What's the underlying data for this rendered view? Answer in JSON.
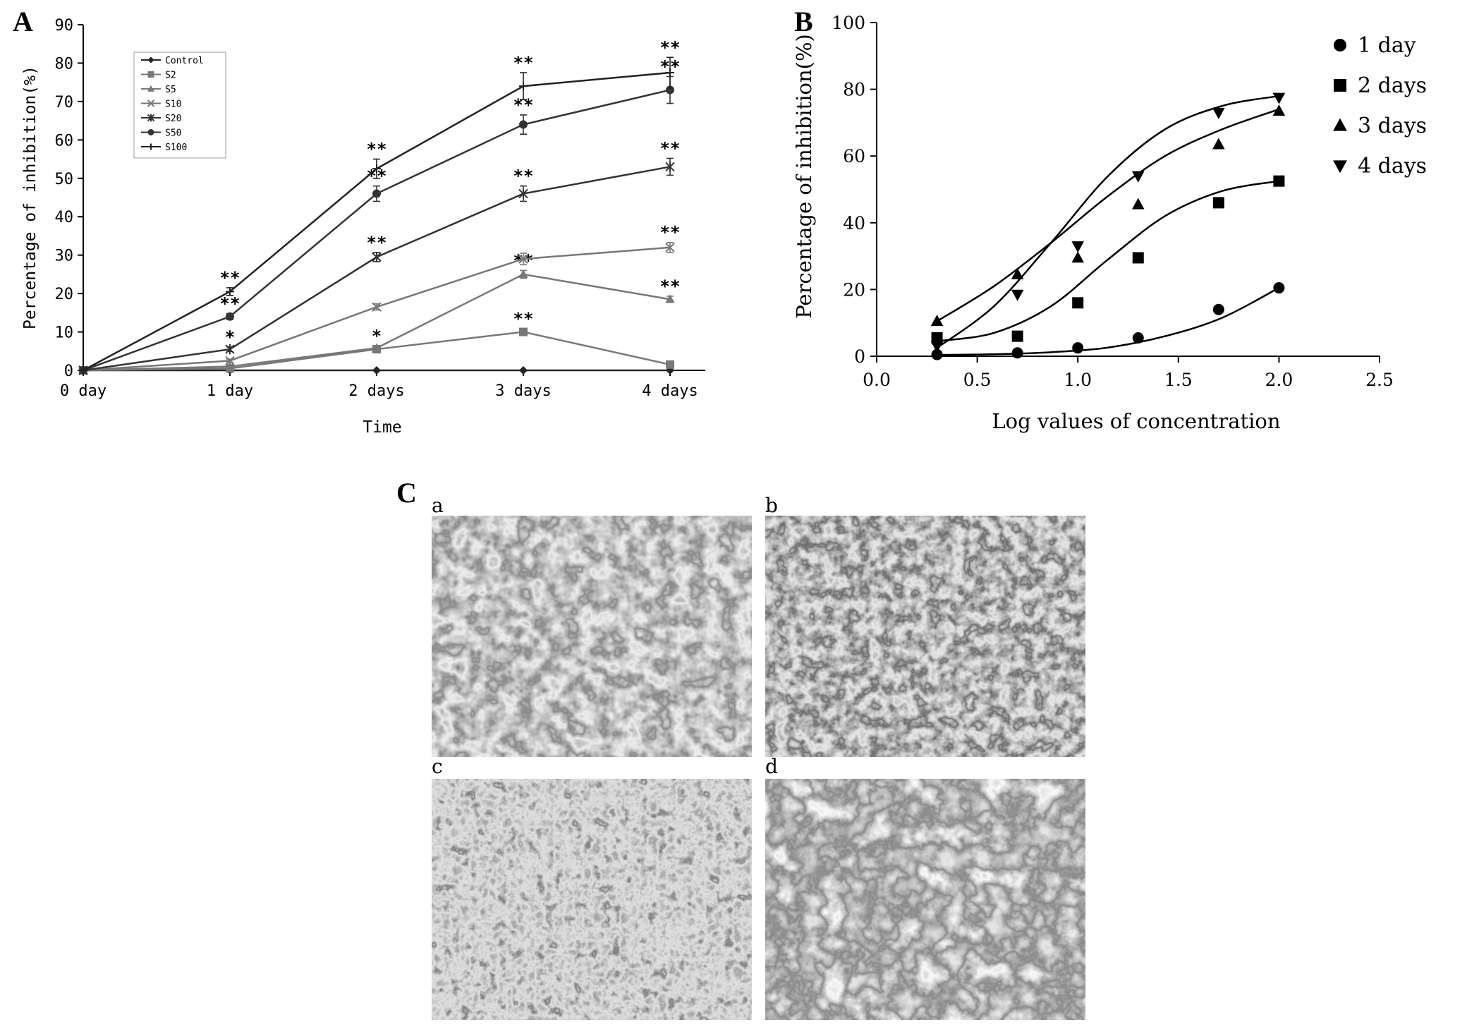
{
  "chart_data": [
    {
      "panel": "A",
      "type": "line",
      "xlabel": "Time",
      "ylabel": "Percentage of inhibition(%)",
      "categories": [
        "0 day",
        "1 day",
        "2 days",
        "3 days",
        "4 days"
      ],
      "yticks": [
        "0",
        "10",
        "20",
        "30",
        "40",
        "50",
        "60",
        "70",
        "80",
        "90"
      ],
      "ylim": [
        0,
        90
      ],
      "legend_position": "top-left",
      "series": [
        {
          "name": "Control",
          "marker": "diamond",
          "color": "#222222",
          "values": [
            0,
            0,
            0,
            0,
            0
          ],
          "err": [
            0,
            0,
            0,
            0,
            0
          ],
          "sig": [
            "",
            "",
            "",
            "",
            ""
          ]
        },
        {
          "name": "S2",
          "marker": "square",
          "color": "#777777",
          "values": [
            0,
            0.5,
            5.5,
            10,
            1.5
          ],
          "err": [
            0,
            0.3,
            0.5,
            0.8,
            0.4
          ],
          "sig": [
            "",
            "",
            "",
            "**",
            ""
          ]
        },
        {
          "name": "S5",
          "marker": "triangle",
          "color": "#777777",
          "values": [
            0,
            1,
            5.8,
            25,
            18.5
          ],
          "err": [
            0,
            0.3,
            0.5,
            1,
            0.8
          ],
          "sig": [
            "",
            "",
            "*",
            "**",
            "**"
          ]
        },
        {
          "name": "S10",
          "marker": "x",
          "color": "#777777",
          "values": [
            0,
            2.5,
            16.5,
            29,
            32
          ],
          "err": [
            0,
            0.4,
            0.8,
            1.5,
            1.3
          ],
          "sig": [
            "",
            "",
            "",
            "",
            "**"
          ]
        },
        {
          "name": "S20",
          "marker": "star",
          "color": "#333333",
          "values": [
            0,
            5.5,
            29.5,
            46,
            53
          ],
          "err": [
            0,
            0.6,
            1.2,
            2,
            2.2
          ],
          "sig": [
            "",
            "*",
            "**",
            "**",
            "**"
          ]
        },
        {
          "name": "S50",
          "marker": "circle",
          "color": "#333333",
          "values": [
            0,
            14,
            46,
            64,
            73
          ],
          "err": [
            0,
            0.8,
            2,
            2.5,
            3.5
          ],
          "sig": [
            "",
            "**",
            "**",
            "**",
            "**"
          ]
        },
        {
          "name": "S100",
          "marker": "plus",
          "color": "#222222",
          "values": [
            0,
            20.5,
            52.5,
            74,
            77.5
          ],
          "err": [
            0,
            1,
            2.5,
            3.5,
            4
          ],
          "sig": [
            "",
            "**",
            "**",
            "**",
            "**"
          ]
        }
      ]
    },
    {
      "panel": "B",
      "type": "scatter",
      "xlabel": "Log values of concentration",
      "ylabel": "Percentage of inhibition(%)",
      "xlim": [
        0.0,
        2.5
      ],
      "ylim": [
        0,
        100
      ],
      "xticks": [
        "0.0",
        "0.5",
        "1.0",
        "1.5",
        "2.0",
        "2.5"
      ],
      "yticks": [
        "0",
        "20",
        "40",
        "60",
        "80",
        "100"
      ],
      "legend_position": "top-right",
      "series": [
        {
          "name": "1 day",
          "marker": "circle",
          "x": [
            0.3,
            0.7,
            1.0,
            1.3,
            1.7,
            2.0
          ],
          "y": [
            0.5,
            1.0,
            2.5,
            5.5,
            14,
            20.5
          ],
          "fit": [
            0.4,
            0.6,
            1.2,
            2.6,
            6,
            11.5,
            20.5
          ]
        },
        {
          "name": "2 days",
          "marker": "square",
          "x": [
            0.3,
            0.7,
            1.0,
            1.3,
            1.7,
            2.0
          ],
          "y": [
            5.5,
            6,
            16,
            29.5,
            46,
            52.5
          ],
          "fit": [
            4.5,
            7,
            15,
            29,
            42,
            49.5,
            52.5
          ]
        },
        {
          "name": "3 days",
          "marker": "triangle-up",
          "x": [
            0.3,
            0.7,
            1.0,
            1.3,
            1.7,
            2.0
          ],
          "y": [
            10.5,
            24.5,
            29.5,
            45.5,
            63.5,
            73.5
          ],
          "fit": [
            10.5,
            21,
            34,
            48,
            60,
            68,
            74
          ]
        },
        {
          "name": "4 days",
          "marker": "triangle-down",
          "x": [
            0.3,
            0.7,
            1.0,
            1.3,
            1.7,
            2.0
          ],
          "y": [
            3,
            18.5,
            33,
            54,
            73,
            77.5
          ],
          "fit": [
            2.5,
            15,
            34,
            54,
            68,
            75,
            78
          ]
        }
      ]
    }
  ],
  "panels": {
    "A": "A",
    "B": "B",
    "C": "C",
    "c_sub": [
      "a",
      "b",
      "c",
      "d"
    ]
  }
}
